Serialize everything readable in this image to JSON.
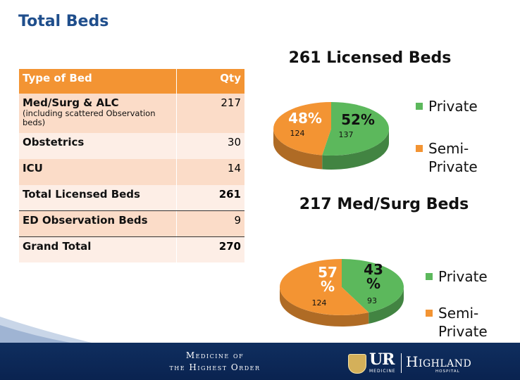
{
  "page": {
    "title": "Total Beds"
  },
  "table": {
    "header": {
      "type_label": "Type of Bed",
      "qty_label": "Qty"
    },
    "rows": [
      {
        "name": "Med/Surg & ALC",
        "note": "(including scattered Observation beds)",
        "qty": "217"
      },
      {
        "name": "Obstetrics",
        "note": "",
        "qty": "30"
      },
      {
        "name": "ICU",
        "note": "",
        "qty": "14"
      },
      {
        "name": "Total Licensed Beds",
        "note": "",
        "qty": "261"
      },
      {
        "name": "ED Observation Beds",
        "note": "",
        "qty": "9"
      },
      {
        "name": "Grand Total",
        "note": "",
        "qty": "270"
      }
    ]
  },
  "colors": {
    "private": "#5cb85c",
    "semi_private": "#f39433",
    "header_bg": "#f39433",
    "title": "#1f4e8c",
    "footer": "#0f2e5f"
  },
  "chart_data": [
    {
      "type": "pie",
      "title": "261 Licensed Beds",
      "legend_position": "right",
      "slices": [
        {
          "name": "Private",
          "value": 137,
          "percent_label": "52%",
          "color": "#5cb85c"
        },
        {
          "name": "Semi-Private",
          "value": 124,
          "percent_label": "48%",
          "color": "#f39433"
        }
      ]
    },
    {
      "type": "pie",
      "title": "217 Med/Surg Beds",
      "legend_position": "right",
      "slices": [
        {
          "name": "Private",
          "value": 93,
          "percent_label": "43%",
          "color": "#5cb85c"
        },
        {
          "name": "Semi-Private",
          "value": 124,
          "percent_label": "57%",
          "color": "#f39433"
        }
      ]
    }
  ],
  "footer": {
    "motto_line1": "Medicine of",
    "motto_line2": "the Highest Order",
    "logo_ur": "UR",
    "logo_medicine": "MEDICINE",
    "logo_highland": "Highland",
    "logo_hospital": "HOSPITAL"
  }
}
